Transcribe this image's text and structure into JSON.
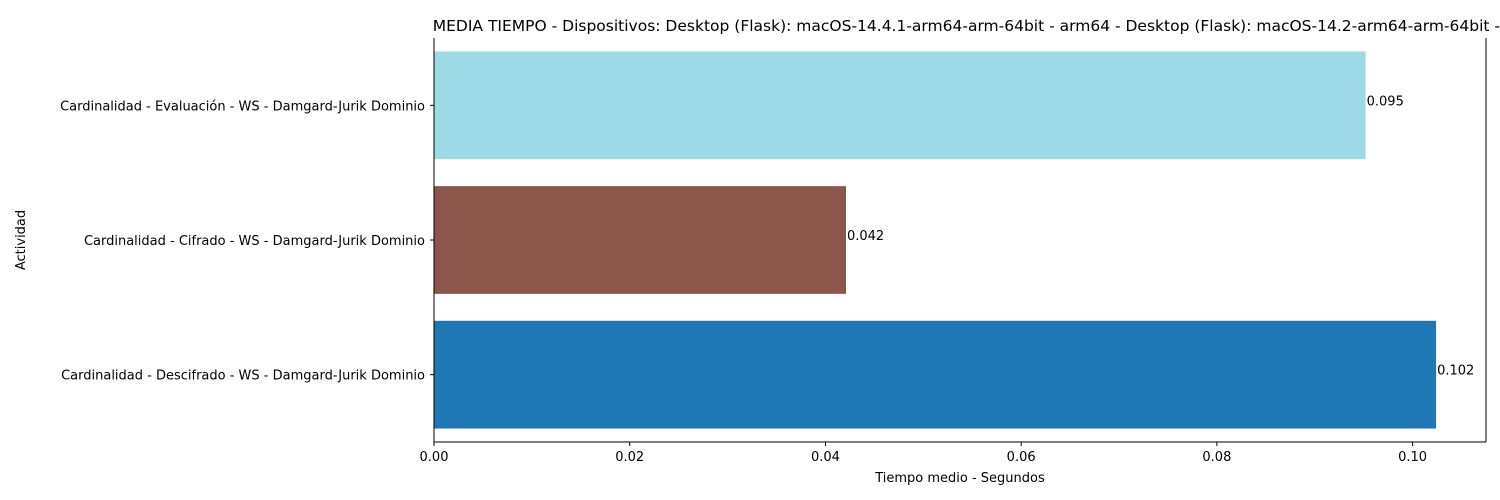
{
  "chart_data": {
    "type": "bar",
    "orientation": "horizontal",
    "title": "MEDIA TIEMPO - Dispositivos: Desktop (Flask): macOS-14.4.1-arm64-arm-64bit - arm64 - Desktop (Flask): macOS-14.2-arm64-arm-64bit -",
    "xlabel": "Tiempo medio - Segundos",
    "ylabel": "Actividad",
    "xlim": [
      0,
      0.1075
    ],
    "xticks": [
      "0.00",
      "0.02",
      "0.04",
      "0.06",
      "0.08",
      "0.10"
    ],
    "categories": [
      "Cardinalidad - Evaluación - WS - Damgard-Jurik Dominio",
      "Cardinalidad - Cifrado - WS - Damgard-Jurik Dominio",
      "Cardinalidad - Descifrado - WS - Damgard-Jurik Dominio"
    ],
    "values": [
      0.0952,
      0.0421,
      0.1024
    ],
    "data_labels": [
      "0.095",
      "0.042",
      "0.102"
    ],
    "colors": [
      "#9edae5",
      "#8c564b",
      "#1f77b4"
    ],
    "grid": false,
    "legend": "none"
  }
}
